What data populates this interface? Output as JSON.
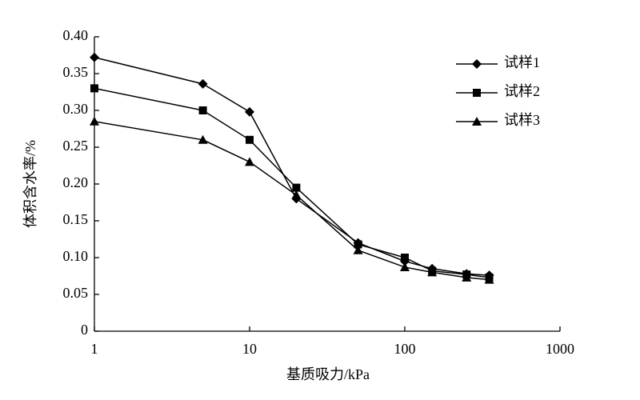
{
  "chart_data": {
    "type": "line",
    "xlabel": "基质吸力/kPa",
    "ylabel": "体积含水率/%",
    "x": [
      1,
      5,
      10,
      20,
      50,
      100,
      150,
      250,
      350
    ],
    "series": [
      {
        "name": "试样1",
        "color": "#000000",
        "marker": "diamond",
        "values": [
          0.372,
          0.336,
          0.298,
          0.18,
          0.12,
          0.095,
          0.085,
          0.078,
          0.076
        ]
      },
      {
        "name": "试样2",
        "color": "#000000",
        "marker": "square",
        "values": [
          0.33,
          0.3,
          0.26,
          0.195,
          0.118,
          0.1,
          0.082,
          0.077,
          0.073
        ]
      },
      {
        "name": "试样3",
        "color": "#000000",
        "marker": "triangle",
        "values": [
          0.285,
          0.26,
          0.23,
          0.185,
          0.11,
          0.087,
          0.08,
          0.073,
          0.07
        ]
      }
    ],
    "xscale": "log",
    "xlim": [
      1,
      1000
    ],
    "xticks": [
      1,
      10,
      100,
      1000
    ],
    "ylim": [
      0,
      0.4
    ],
    "yticks": [
      0,
      0.05,
      {
        "value": 0.1,
        "label": "0.10"
      },
      0.15,
      {
        "value": 0.2,
        "label": "0.20"
      },
      0.25,
      {
        "value": 0.3,
        "label": "0.30"
      },
      0.35,
      {
        "value": 0.4,
        "label": "0.40"
      }
    ],
    "legend": "upper right",
    "grid": false
  }
}
